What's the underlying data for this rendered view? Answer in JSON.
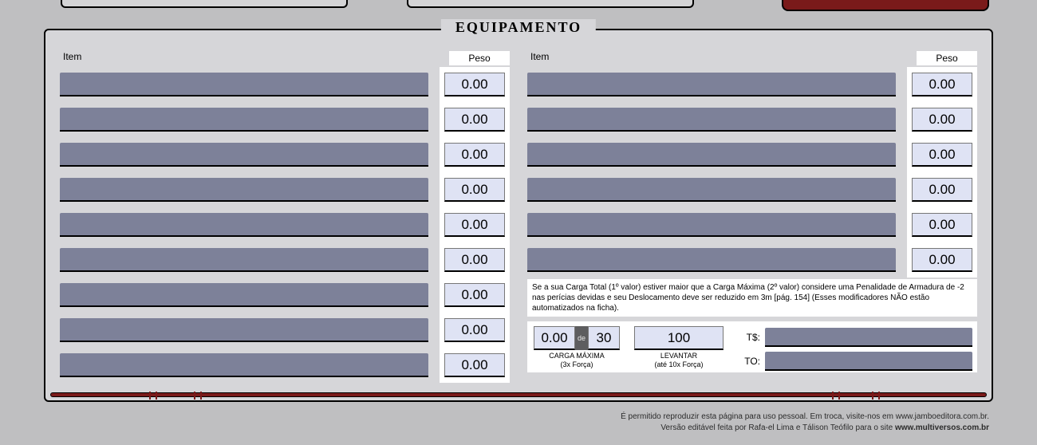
{
  "title": "EQUIPAMENTO",
  "headers": {
    "item": "Item",
    "peso": "Peso"
  },
  "left_items": [
    "",
    "",
    "",
    "",
    "",
    "",
    "",
    "",
    ""
  ],
  "left_pesos": [
    "0.00",
    "0.00",
    "0.00",
    "0.00",
    "0.00",
    "0.00",
    "0.00",
    "0.00",
    "0.00"
  ],
  "right_items": [
    "",
    "",
    "",
    "",
    "",
    ""
  ],
  "right_pesos": [
    "0.00",
    "0.00",
    "0.00",
    "0.00",
    "0.00",
    "0.00"
  ],
  "note": "Se a sua Carga Total (1º valor) estiver maior que a Carga Máxima (2º valor) considere uma Penalidade de Armadura de -2 nas perícias devidas e seu Deslocamento deve ser reduzido em 3m [pág. 154] (Esses modificadores NÃO estão automatizados na ficha).",
  "carga": {
    "atual": "0.00",
    "sep": "de",
    "max": "30",
    "caption1": "CARGA MÁXIMA",
    "caption2": "(3x Força)"
  },
  "levantar": {
    "valor": "100",
    "caption1": "LEVANTAR",
    "caption2": "(até 10x Força)"
  },
  "money": {
    "ts_label": "T$:",
    "to_label": "TO:",
    "ts_value": "",
    "to_value": ""
  },
  "footer": {
    "line1": "É permitido reproduzir esta página para uso pessoal. Em troca, visite-nos em www.jamboeditora.com.br.",
    "line2_a": "Versão editável feita por Rafa-el Lima e Tálison Teófilo para o site ",
    "line2_b": "www.multiversos.com.br"
  },
  "colors": {
    "page_bg": "#bfbfc1",
    "panel_bg": "#d6d6d9",
    "input_bg": "#7d8199",
    "num_bg": "#dfe3f4",
    "accent": "#7a1a1a"
  }
}
